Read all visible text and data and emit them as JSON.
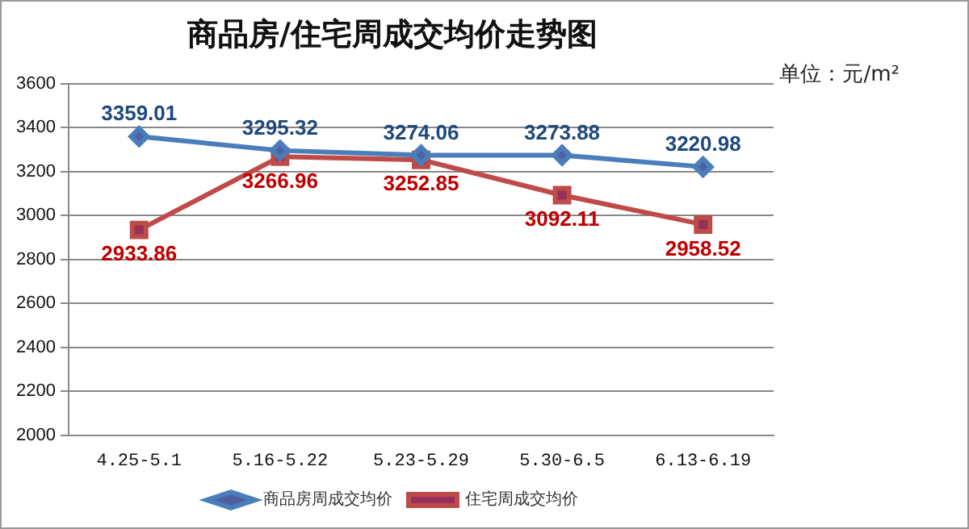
{
  "chart_data": {
    "type": "line",
    "title": "商品房/住宅周成交均价走势图",
    "annotations": [
      "单位：元/m²"
    ],
    "categories": [
      "4.25-5.1",
      "5.16-5.22",
      "5.23-5.29",
      "5.30-6.5",
      "6.13-6.19"
    ],
    "series": [
      {
        "name": "商品房周成交均价",
        "color": "#4a7ebb",
        "marker": "diamond",
        "values": [
          3359.01,
          3295.32,
          3274.06,
          3273.88,
          3220.98
        ]
      },
      {
        "name": "住宅周成交均价",
        "color": "#be4b48",
        "marker": "square",
        "values": [
          2933.86,
          3266.96,
          3252.85,
          3092.11,
          2958.52
        ]
      }
    ],
    "ylim": [
      2000,
      3600
    ],
    "yticks": [
      2000,
      2200,
      2400,
      2600,
      2800,
      3000,
      3200,
      3400,
      3600
    ],
    "grid": "y",
    "legend": "bottom",
    "data_labels": true
  }
}
